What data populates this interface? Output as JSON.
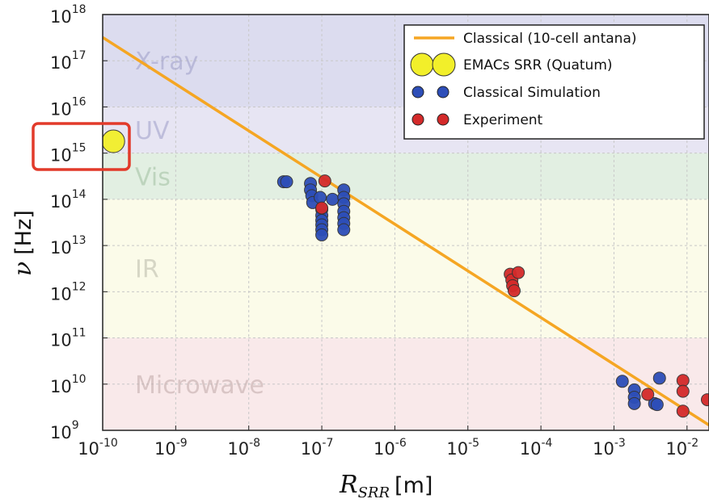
{
  "chart_data": {
    "type": "scatter",
    "xscale": "log",
    "yscale": "log",
    "xlim": [
      1e-10,
      0.02
    ],
    "ylim": [
      1000000000.0,
      1e+18
    ],
    "xlabel": "R",
    "xlabel_sub": "SRR",
    "xlabel_unit": "[m]",
    "ylabel": "ν",
    "ylabel_unit": "[Hz]",
    "grid": true,
    "legend_position": "top-right",
    "x_ticks": [
      {
        "base": "10",
        "exp": "-10",
        "value": 1e-10
      },
      {
        "base": "10",
        "exp": "-9",
        "value": 1e-09
      },
      {
        "base": "10",
        "exp": "-8",
        "value": 1e-08
      },
      {
        "base": "10",
        "exp": "-7",
        "value": 1e-07
      },
      {
        "base": "10",
        "exp": "-6",
        "value": 1e-06
      },
      {
        "base": "10",
        "exp": "-5",
        "value": 1e-05
      },
      {
        "base": "10",
        "exp": "-4",
        "value": 0.0001
      },
      {
        "base": "10",
        "exp": "-3",
        "value": 0.001
      },
      {
        "base": "10",
        "exp": "-2",
        "value": 0.01
      }
    ],
    "y_ticks": [
      {
        "base": "10",
        "exp": "9",
        "value": 1000000000.0
      },
      {
        "base": "10",
        "exp": "10",
        "value": 10000000000.0
      },
      {
        "base": "10",
        "exp": "11",
        "value": 100000000000.0
      },
      {
        "base": "10",
        "exp": "12",
        "value": 1000000000000.0
      },
      {
        "base": "10",
        "exp": "13",
        "value": 10000000000000.0
      },
      {
        "base": "10",
        "exp": "14",
        "value": 100000000000000.0
      },
      {
        "base": "10",
        "exp": "15",
        "value": 1000000000000000.0
      },
      {
        "base": "10",
        "exp": "16",
        "value": 1e+16
      },
      {
        "base": "10",
        "exp": "17",
        "value": 1e+17
      },
      {
        "base": "10",
        "exp": "18",
        "value": 1e+18
      }
    ],
    "bands": [
      {
        "label": "X-ray",
        "y_from": 1e+16,
        "y_to": 1e+18,
        "color": "#dcdcef",
        "text_color": "#9e9ec8"
      },
      {
        "label": "UV",
        "y_from": 1000000000000000.0,
        "y_to": 1e+16,
        "color": "#e7e5f3",
        "text_color": "#9e9ec8"
      },
      {
        "label": "Vis",
        "y_from": 100000000000000.0,
        "y_to": 1000000000000000.0,
        "color": "#e2efe2",
        "text_color": "#9fbf9f"
      },
      {
        "label": "IR",
        "y_from": 100000000000.0,
        "y_to": 100000000000000.0,
        "color": "#fbfbe9",
        "text_color": "#b8b8a8"
      },
      {
        "label": "Microwave",
        "y_from": 1000000000.0,
        "y_to": 100000000000.0,
        "color": "#f9e9ea",
        "text_color": "#c0a8a8"
      }
    ],
    "series": [
      {
        "name": "Classical (10-cell antana)",
        "kind": "line",
        "color": "#f5a623",
        "points": [
          [
            1e-10,
            3.2e+17
          ],
          [
            0.02,
            1300000000.0
          ]
        ]
      },
      {
        "name": "EMACs SRR (Quatum)",
        "kind": "scatter",
        "color": "#f2ef2a",
        "size": "large",
        "points": [
          [
            1.4e-10,
            1800000000000000.0
          ]
        ]
      },
      {
        "name": "Classical Simulation",
        "kind": "scatter",
        "color": "#2d4eb8",
        "points": [
          [
            3e-08,
            240000000000000.0
          ],
          [
            3.3e-08,
            240000000000000.0
          ],
          [
            7e-08,
            220000000000000.0
          ],
          [
            7e-08,
            160000000000000.0
          ],
          [
            7.3e-08,
            120000000000000.0
          ],
          [
            7.5e-08,
            85000000000000.0
          ],
          [
            9.5e-08,
            110000000000000.0
          ],
          [
            1e-07,
            60000000000000.0
          ],
          [
            1e-07,
            45000000000000.0
          ],
          [
            1e-07,
            35000000000000.0
          ],
          [
            1e-07,
            28000000000000.0
          ],
          [
            1e-07,
            22000000000000.0
          ],
          [
            1e-07,
            17000000000000.0
          ],
          [
            1.4e-07,
            100000000000000.0
          ],
          [
            2e-07,
            160000000000000.0
          ],
          [
            2e-07,
            110000000000000.0
          ],
          [
            2e-07,
            80000000000000.0
          ],
          [
            2e-07,
            55000000000000.0
          ],
          [
            2e-07,
            40000000000000.0
          ],
          [
            2e-07,
            30000000000000.0
          ],
          [
            2e-07,
            22000000000000.0
          ],
          [
            0.0013,
            11500000000.0
          ],
          [
            0.0019,
            7500000000.0
          ],
          [
            0.0019,
            5200000000.0
          ],
          [
            0.0019,
            3800000000.0
          ],
          [
            0.0036,
            3800000000.0
          ],
          [
            0.0039,
            3600000000.0
          ],
          [
            0.0042,
            13500000000.0
          ]
        ]
      },
      {
        "name": "Experiment",
        "kind": "scatter",
        "color": "#d42a2a",
        "points": [
          [
            1.1e-07,
            250000000000000.0
          ],
          [
            1e-07,
            65000000000000.0
          ],
          [
            3.8e-05,
            2400000000000.0
          ],
          [
            4e-05,
            1800000000000.0
          ],
          [
            4.1e-05,
            1350000000000.0
          ],
          [
            4.3e-05,
            1050000000000.0
          ],
          [
            4.9e-05,
            2600000000000.0
          ],
          [
            0.0029,
            6000000000.0
          ],
          [
            0.0088,
            12000000000.0
          ],
          [
            0.0088,
            7000000000.0
          ],
          [
            0.0088,
            2600000000.0
          ],
          [
            0.019,
            4600000000.0
          ]
        ]
      }
    ]
  }
}
